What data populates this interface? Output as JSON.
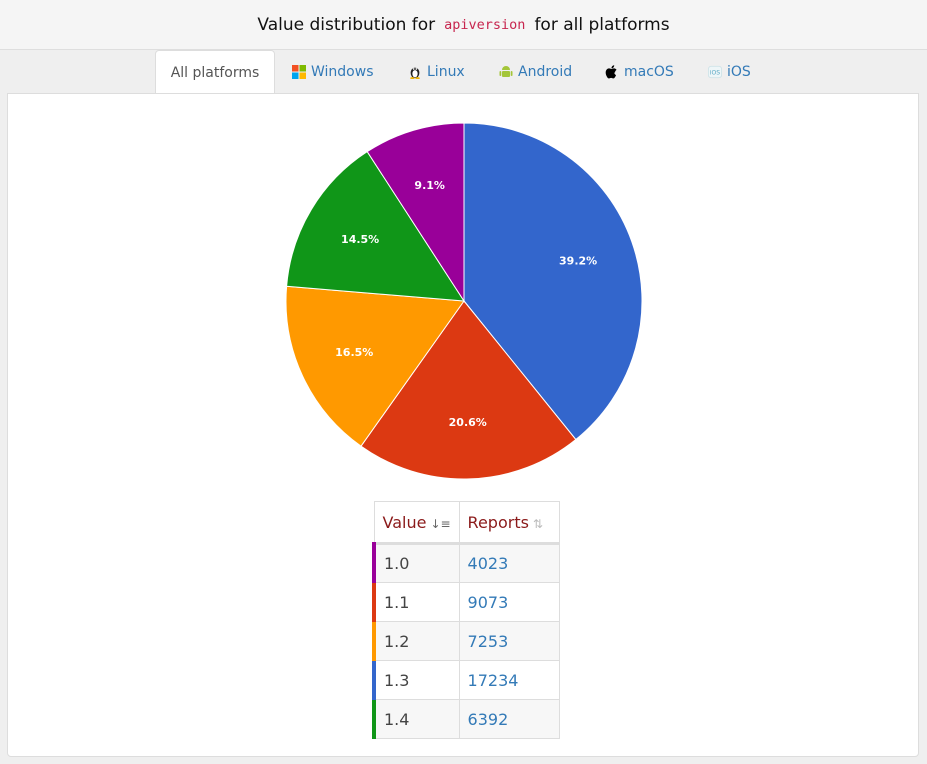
{
  "header": {
    "prefix": "Value distribution for",
    "code": "apiversion",
    "suffix": "for all platforms"
  },
  "tabs": [
    {
      "label": "All platforms",
      "icon": "none"
    },
    {
      "label": "Windows",
      "icon": "windows-icon"
    },
    {
      "label": "Linux",
      "icon": "linux-icon"
    },
    {
      "label": "Android",
      "icon": "android-icon"
    },
    {
      "label": "macOS",
      "icon": "apple-icon"
    },
    {
      "label": "iOS",
      "icon": "ios-icon"
    }
  ],
  "table": {
    "headers": {
      "value": "Value",
      "reports": "Reports"
    },
    "rows": [
      {
        "value": "1.0",
        "reports": "4023",
        "color": "#990099"
      },
      {
        "value": "1.1",
        "reports": "9073",
        "color": "#dc3912"
      },
      {
        "value": "1.2",
        "reports": "7253",
        "color": "#ff9900"
      },
      {
        "value": "1.3",
        "reports": "17234",
        "color": "#3366cc"
      },
      {
        "value": "1.4",
        "reports": "6392",
        "color": "#109618"
      }
    ]
  },
  "chart_data": {
    "type": "pie",
    "slices": [
      {
        "label": "1.3",
        "value": 17234,
        "percent_label": "39.2%",
        "color": "#3366cc"
      },
      {
        "label": "1.1",
        "value": 9073,
        "percent_label": "20.6%",
        "color": "#dc3912"
      },
      {
        "label": "1.2",
        "value": 7253,
        "percent_label": "16.5%",
        "color": "#ff9900"
      },
      {
        "label": "1.4",
        "value": 6392,
        "percent_label": "14.5%",
        "color": "#109618"
      },
      {
        "label": "1.0",
        "value": 4023,
        "percent_label": "9.1%",
        "color": "#990099"
      }
    ]
  }
}
